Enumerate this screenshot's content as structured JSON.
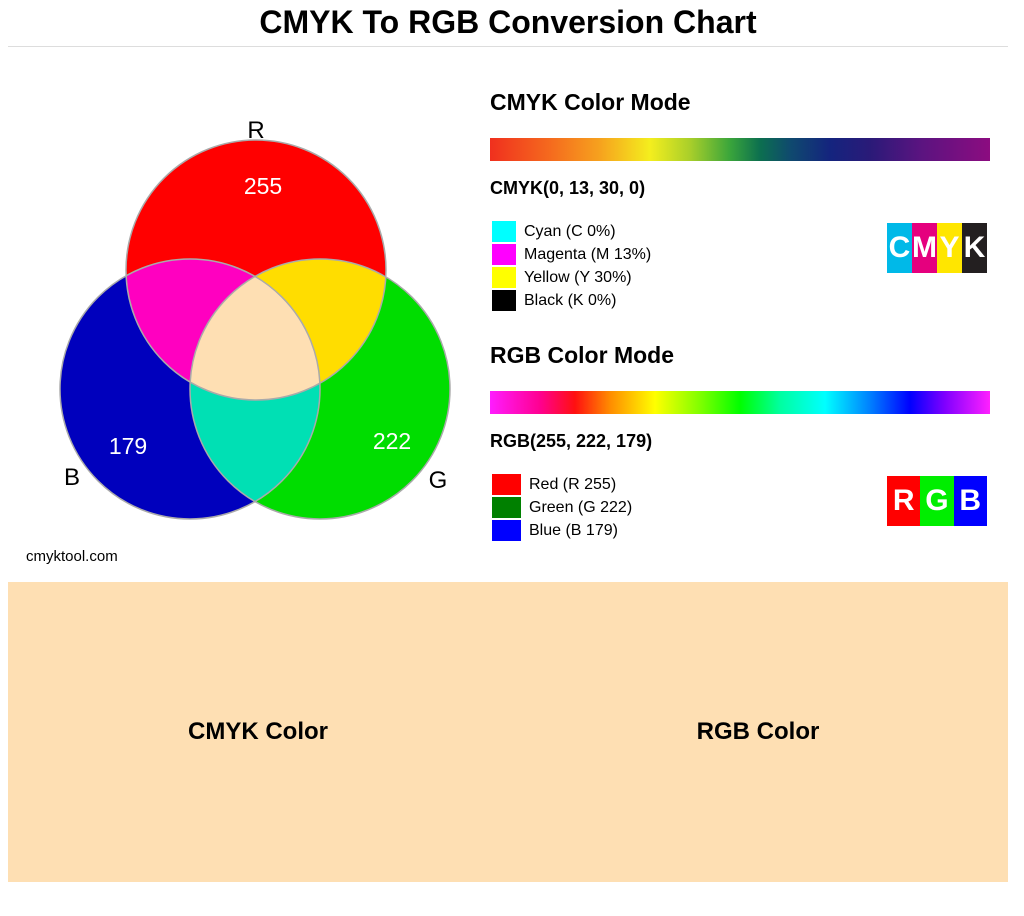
{
  "header": {
    "title": "CMYK To RGB Conversion Chart"
  },
  "venn": {
    "labels": {
      "r": "R",
      "g": "G",
      "b": "B"
    },
    "values": {
      "r": "255",
      "g": "222",
      "b": "179"
    },
    "source": "cmyktool.com"
  },
  "cmyk": {
    "title": "CMYK Color Mode",
    "formula": "CMYK(0, 13, 30, 0)",
    "legend": [
      "Cyan (C 0%)",
      "Magenta (M 13%)",
      "Yellow (Y 30%)",
      "Black (K 0%)"
    ],
    "logo": [
      "C",
      "M",
      "Y",
      "K"
    ]
  },
  "rgb": {
    "title": "RGB Color Mode",
    "formula": "RGB(255, 222, 179)",
    "legend": [
      "Red (R 255)",
      "Green (G 222)",
      "Blue (B 179)"
    ],
    "logo": [
      "R",
      "G",
      "B"
    ]
  },
  "swatches": [
    "CMYK Color",
    "RGB Color"
  ]
}
